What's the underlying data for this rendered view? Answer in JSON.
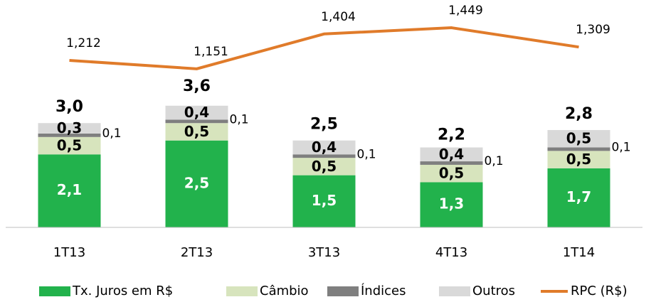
{
  "chart_data": {
    "type": "bar",
    "categories": [
      "1T13",
      "2T13",
      "3T13",
      "4T13",
      "1T14"
    ],
    "series": [
      {
        "name": "Tx. Juros em R$",
        "color": "#22b24c",
        "values": [
          2.1,
          2.5,
          1.5,
          1.3,
          1.7
        ],
        "value_labels": [
          "2,1",
          "2,5",
          "1,5",
          "1,3",
          "1,7"
        ]
      },
      {
        "name": "Câmbio",
        "color": "#d7e4bd",
        "values": [
          0.5,
          0.5,
          0.5,
          0.5,
          0.5
        ],
        "value_labels": [
          "0,5",
          "0,5",
          "0,5",
          "0,5",
          "0,5"
        ]
      },
      {
        "name": "Índices",
        "color": "#7f7f7f",
        "values": [
          0.1,
          0.1,
          0.1,
          0.1,
          0.1
        ],
        "value_labels": [
          "0,1",
          "0,1",
          "0,1",
          "0,1",
          "0,1"
        ]
      },
      {
        "name": "Outros",
        "color": "#d9d9d9",
        "values": [
          0.3,
          0.4,
          0.4,
          0.4,
          0.5
        ],
        "value_labels": [
          "0,3",
          "0,4",
          "0,4",
          "0,4",
          "0,5"
        ]
      },
      {
        "name": "RPC (R$)",
        "type": "line",
        "axis": "y2",
        "color": "#e07b2a",
        "values": [
          1212,
          1151,
          1404,
          1449,
          1309
        ],
        "value_labels": [
          "1,212",
          "1,151",
          "1,404",
          "1,449",
          "1,309"
        ]
      }
    ],
    "totals": [
      3.0,
      3.6,
      2.5,
      2.2,
      2.8
    ],
    "total_labels": [
      "3,0",
      "3,6",
      "2,5",
      "2,2",
      "2,8"
    ],
    "ylim": [
      0,
      6.5
    ],
    "y2lim": [
      0,
      1640
    ],
    "legend": "bottom"
  }
}
